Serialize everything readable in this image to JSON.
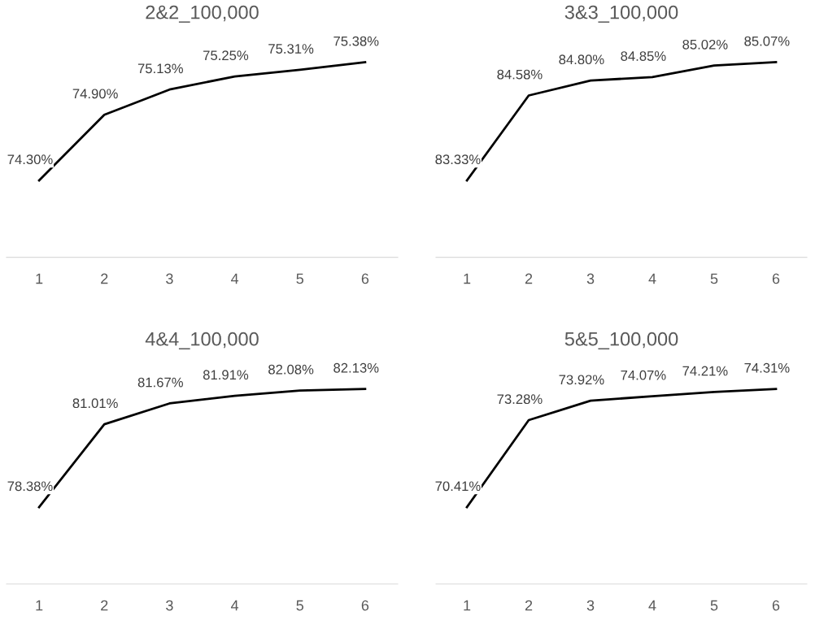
{
  "chart_data": [
    {
      "type": "line",
      "title": "2&2_100,000",
      "categories": [
        "1",
        "2",
        "3",
        "4",
        "5",
        "6"
      ],
      "series": [
        {
          "color": "#000000",
          "values": [
            74.3,
            74.9,
            75.13,
            75.25,
            75.31,
            75.38
          ],
          "value_labels": [
            "74.30%",
            "74.90%",
            "75.13%",
            "75.25%",
            "75.31%",
            "75.38%"
          ]
        }
      ],
      "tick_labels": "x"
    },
    {
      "type": "line",
      "title": "3&3_100,000",
      "categories": [
        "1",
        "2",
        "3",
        "4",
        "5",
        "6"
      ],
      "series": [
        {
          "color": "#000000",
          "values": [
            83.33,
            84.58,
            84.8,
            84.85,
            85.02,
            85.07
          ],
          "value_labels": [
            "83.33%",
            "84.58%",
            "84.80%",
            "84.85%",
            "85.02%",
            "85.07%"
          ]
        }
      ],
      "tick_labels": "x"
    },
    {
      "type": "line",
      "title": "4&4_100,000",
      "categories": [
        "1",
        "2",
        "3",
        "4",
        "5",
        "6"
      ],
      "series": [
        {
          "color": "#000000",
          "values": [
            78.38,
            81.01,
            81.67,
            81.91,
            82.08,
            82.13
          ],
          "value_labels": [
            "78.38%",
            "81.01%",
            "81.67%",
            "81.91%",
            "82.08%",
            "82.13%"
          ]
        }
      ],
      "tick_labels": "x"
    },
    {
      "type": "line",
      "title": "5&5_100,000",
      "categories": [
        "1",
        "2",
        "3",
        "4",
        "5",
        "6"
      ],
      "series": [
        {
          "color": "#000000",
          "values": [
            70.41,
            73.28,
            73.92,
            74.07,
            74.21,
            74.31
          ],
          "value_labels": [
            "70.41%",
            "73.28%",
            "73.92%",
            "74.07%",
            "74.21%",
            "74.31%"
          ]
        }
      ],
      "tick_labels": "x"
    }
  ]
}
